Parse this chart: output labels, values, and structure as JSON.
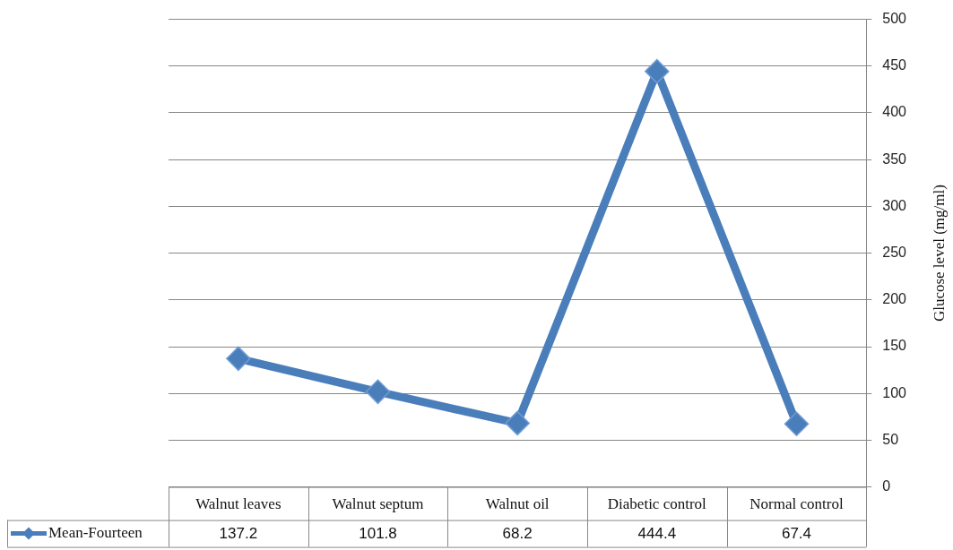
{
  "chart_data": {
    "type": "line",
    "ylabel": "Glucose level (mg/ml)",
    "categories": [
      "Walnut leaves",
      "Walnut septum",
      "Walnut oil",
      "Diabetic control",
      "Normal control"
    ],
    "series": [
      {
        "name": "Mean-Fourteen",
        "color": "#4a7ebb",
        "values": [
          137.2,
          101.8,
          68.2,
          444.4,
          67.4
        ]
      }
    ],
    "ylim": [
      0,
      500
    ],
    "yticks": [
      0,
      50,
      100,
      150,
      200,
      250,
      300,
      350,
      400,
      450,
      500
    ],
    "grid": "y",
    "legend": "bottom left",
    "marker": "diamond",
    "line_style": "solid",
    "data_labels": true
  }
}
